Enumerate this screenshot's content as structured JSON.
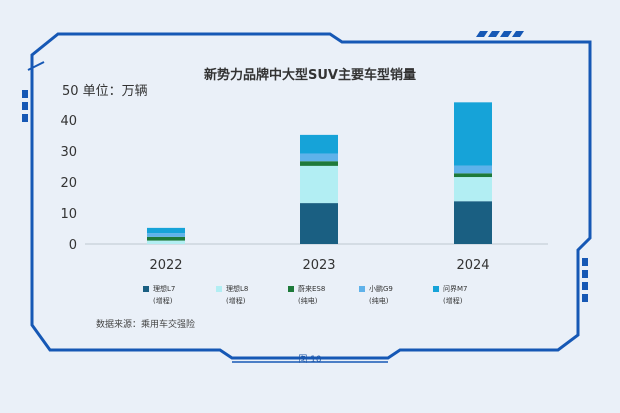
{
  "chart_data": {
    "type": "bar",
    "stacked": true,
    "title": "新势力品牌中大型SUV主要车型销量",
    "unit_label": "单位：万辆",
    "categories": [
      "2022",
      "2023",
      "2024"
    ],
    "ylim": [
      0,
      50
    ],
    "yticks": [
      0,
      10,
      20,
      30,
      40,
      50
    ],
    "grid": false,
    "legend_position": "bottom",
    "series": [
      {
        "name": "理想L7",
        "sub": "(增程)",
        "color": "#1a5f82",
        "values": [
          0.0,
          13.2,
          13.8
        ]
      },
      {
        "name": "理想L8",
        "sub": "(增程)",
        "color": "#b2eef3",
        "values": [
          1.1,
          12.0,
          7.8
        ]
      },
      {
        "name": "蔚来ES8",
        "sub": "(纯电)",
        "color": "#1e7a3a",
        "values": [
          1.2,
          1.5,
          1.2
        ]
      },
      {
        "name": "小鹏G9",
        "sub": "(纯电)",
        "color": "#5fb2ea",
        "values": [
          1.2,
          2.5,
          2.5
        ]
      },
      {
        "name": "问界M7",
        "sub": "(增程)",
        "color": "#16a3d8",
        "values": [
          1.7,
          6.0,
          20.4
        ]
      }
    ],
    "source": "数据来源：乘用车交强险"
  },
  "figure_label": "图 10"
}
